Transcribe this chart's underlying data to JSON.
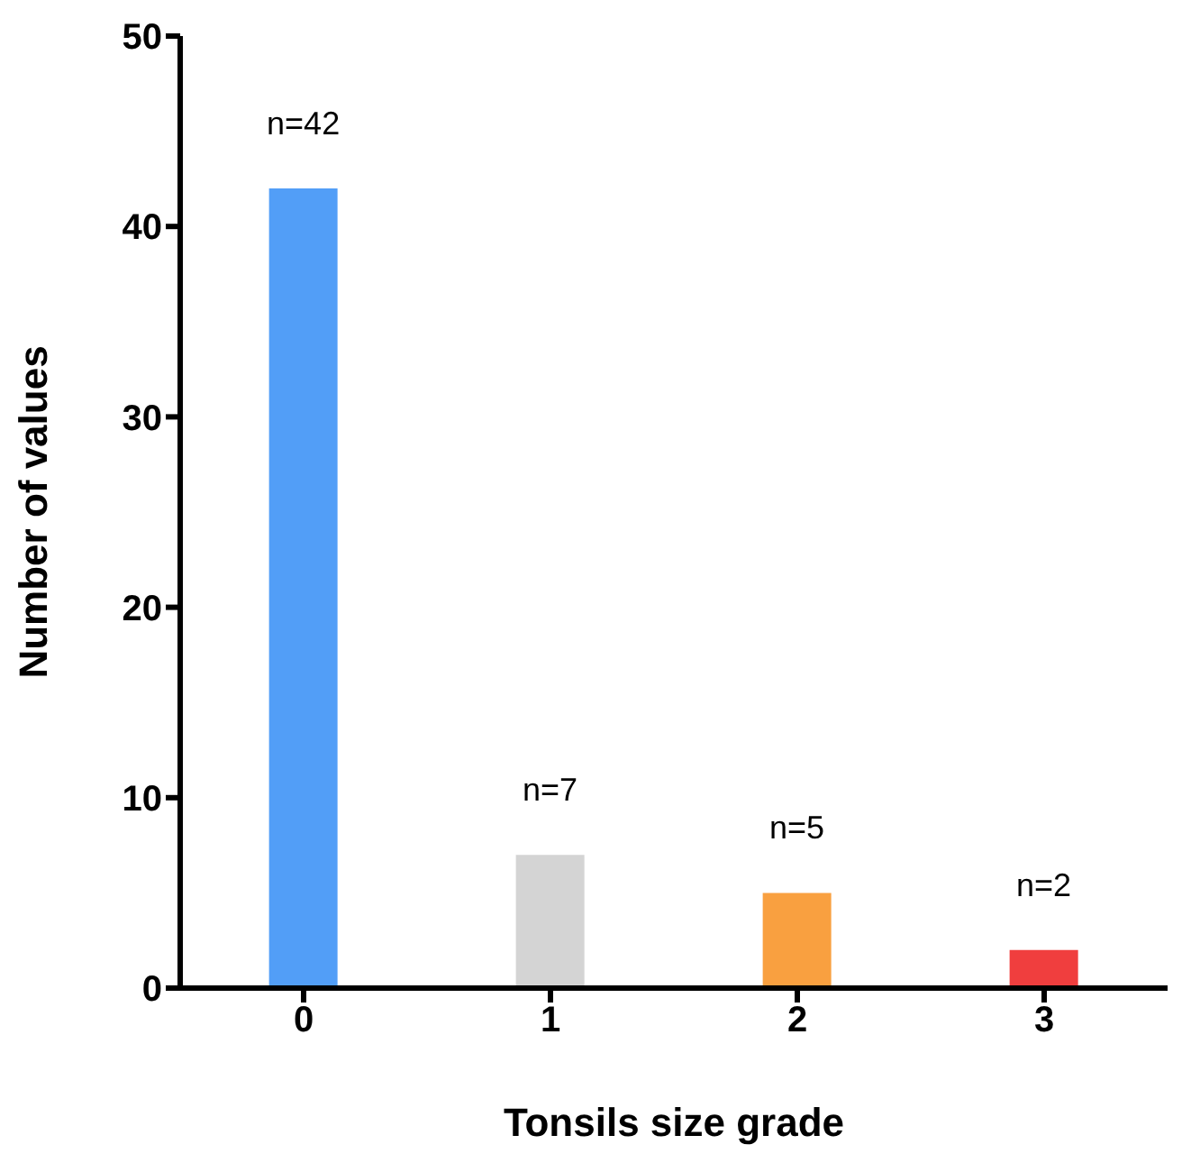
{
  "chart_data": {
    "type": "bar",
    "xlabel": "Tonsils size grade",
    "ylabel": "Number of values",
    "categories": [
      "0",
      "1",
      "2",
      "3"
    ],
    "values": [
      42,
      7,
      5,
      2
    ],
    "colors": [
      "#529ef7",
      "#d4d4d4",
      "#f9a040",
      "#f03e3e"
    ],
    "value_labels": [
      "n=42",
      "n=7",
      "n=5",
      "n=2"
    ],
    "ylim": [
      0,
      50
    ],
    "yticks": [
      0,
      10,
      20,
      30,
      40,
      50
    ],
    "grid": false,
    "legend": false
  }
}
